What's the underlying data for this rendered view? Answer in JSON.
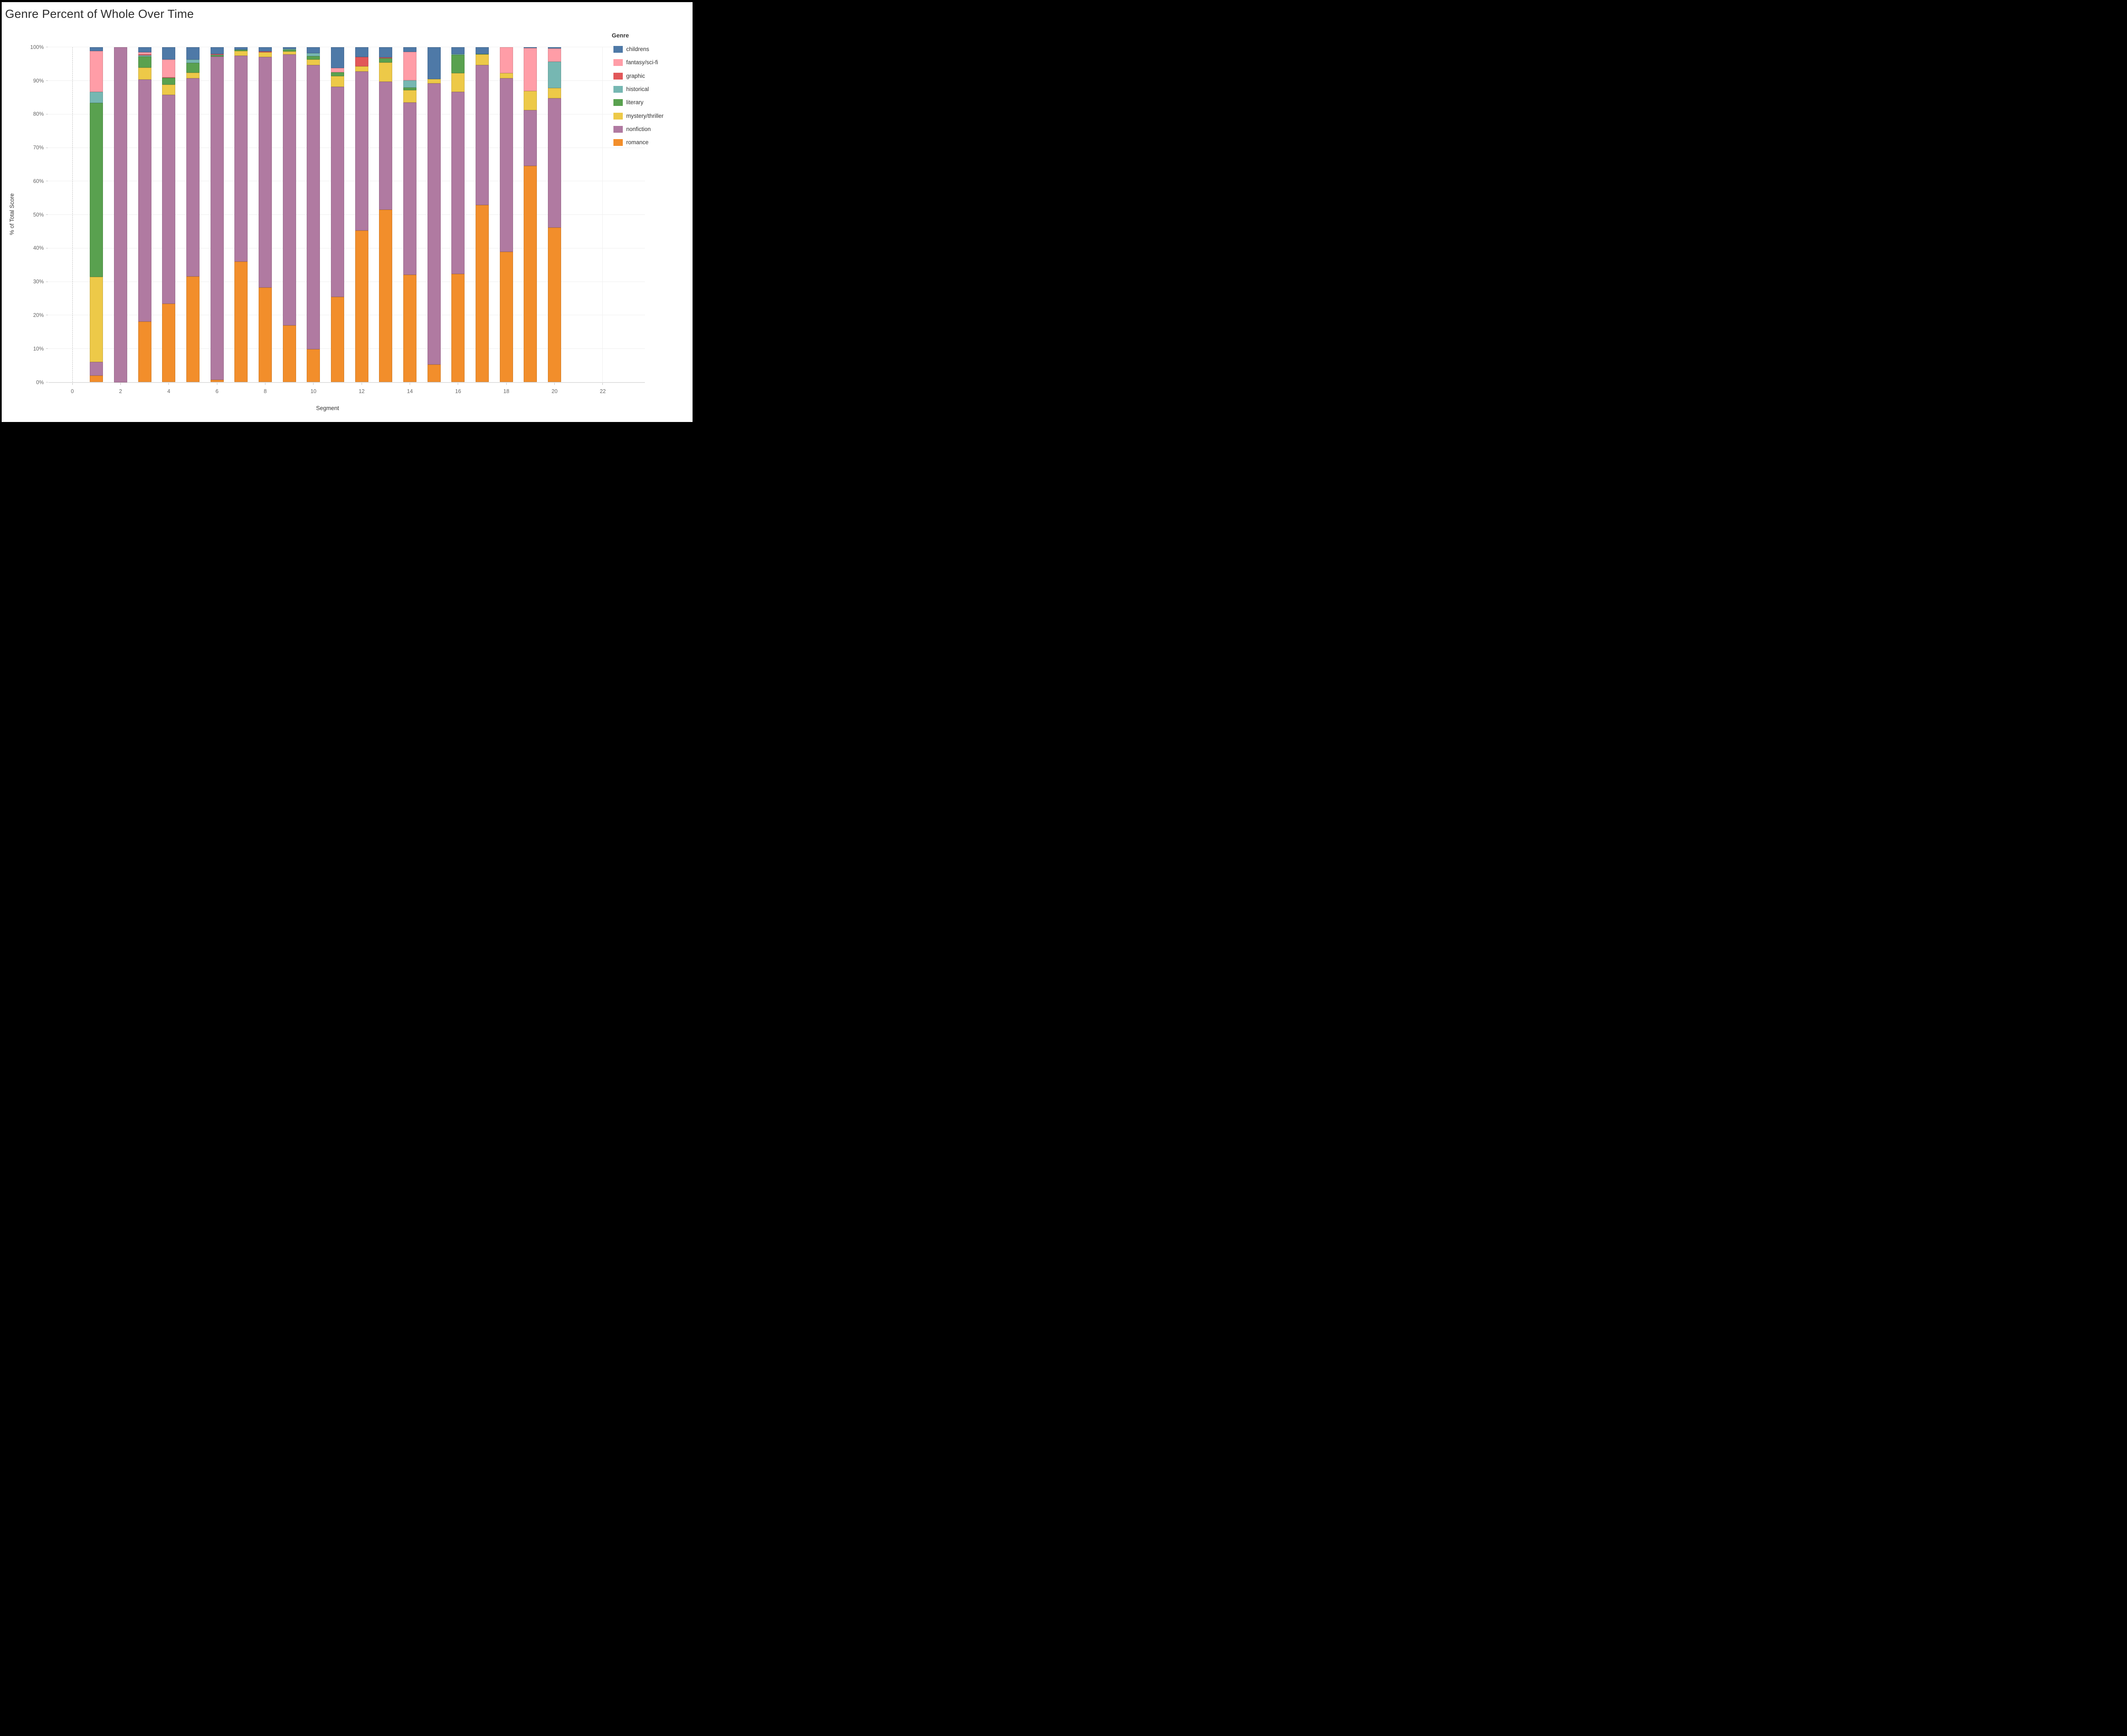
{
  "window": {
    "matte_color": "#000000",
    "sheet_color": "#ffffff"
  },
  "chart": {
    "title": "Genre Percent of Whole Over Time",
    "xlabel": "Segment",
    "ylabel": "% of Total Score"
  },
  "legend": {
    "title": "Genre",
    "items": [
      {
        "label": "childrens",
        "color": "#4e79a7"
      },
      {
        "label": "fantasy/sci-fi",
        "color": "#ff9da7"
      },
      {
        "label": "graphic",
        "color": "#e15759"
      },
      {
        "label": "historical",
        "color": "#76b7b2"
      },
      {
        "label": "literary",
        "color": "#59a14f"
      },
      {
        "label": "mystery/thriller",
        "color": "#edc948"
      },
      {
        "label": "nonfiction",
        "color": "#b07aa1"
      },
      {
        "label": "romance",
        "color": "#f28e2b"
      }
    ]
  },
  "axes": {
    "x_ticks": [
      "0",
      "2",
      "4",
      "6",
      "8",
      "10",
      "12",
      "14",
      "16",
      "18",
      "20",
      "22"
    ],
    "x_tick_values": [
      0,
      2,
      4,
      6,
      8,
      10,
      12,
      14,
      16,
      18,
      20,
      22
    ],
    "y_ticks": [
      "0%",
      "10%",
      "20%",
      "30%",
      "40%",
      "50%",
      "60%",
      "70%",
      "80%",
      "90%",
      "100%"
    ],
    "y_tick_values": [
      0,
      10,
      20,
      30,
      40,
      50,
      60,
      70,
      80,
      90,
      100
    ]
  },
  "chart_data": {
    "type": "bar",
    "subtype": "stacked-percent",
    "title": "Genre Percent of Whole Over Time",
    "xlabel": "Segment",
    "ylabel": "% of Total Score",
    "x": [
      1,
      2,
      3,
      4,
      5,
      6,
      7,
      8,
      9,
      10,
      11,
      12,
      13,
      14,
      15,
      16,
      17,
      18,
      19,
      20
    ],
    "xlim": [
      0,
      22
    ],
    "ylim": [
      0,
      100
    ],
    "grid": true,
    "legend_position": "right",
    "reference_line": {
      "axis": "x",
      "value": 0,
      "style": "dashed"
    },
    "stack_order_bottom_to_top": [
      "romance",
      "nonfiction",
      "mystery/thriller",
      "literary",
      "historical",
      "graphic",
      "fantasy/sci-fi",
      "childrens"
    ],
    "series": [
      {
        "name": "childrens",
        "color": "#4e79a7",
        "values": [
          1.2,
          0,
          1.5,
          3.7,
          3.7,
          2.0,
          0.85,
          1.25,
          0.6,
          1.75,
          6.3,
          2.95,
          3.05,
          1.4,
          9.5,
          2.1,
          2.0,
          0,
          0.3,
          0.4
        ]
      },
      {
        "name": "fantasy/sci-fi",
        "color": "#ff9da7",
        "values": [
          12.2,
          0,
          0.7,
          5.3,
          0,
          0,
          0,
          0,
          0,
          0,
          1.2,
          0,
          0,
          8.55,
          0,
          0,
          0,
          7.75,
          12.75,
          4.0
        ]
      },
      {
        "name": "graphic",
        "color": "#e15759",
        "values": [
          0,
          0,
          0.3,
          0.2,
          0,
          0.3,
          0,
          0.3,
          0,
          0,
          0,
          2.8,
          0.25,
          0,
          0,
          0,
          0,
          0,
          0,
          0
        ]
      },
      {
        "name": "historical",
        "color": "#76b7b2",
        "values": [
          3.2,
          0,
          0.3,
          0,
          1.0,
          0.2,
          0,
          0,
          0.25,
          0.9,
          0,
          0,
          0,
          2.1,
          0,
          0.2,
          0,
          0,
          0,
          7.85
        ]
      },
      {
        "name": "literary",
        "color": "#59a14f",
        "values": [
          52.0,
          0,
          3.3,
          2.0,
          3.0,
          0.3,
          0.35,
          0,
          0.45,
          1.1,
          1.2,
          0,
          1.3,
          0.8,
          0,
          5.5,
          0.2,
          0,
          0,
          0
        ]
      },
      {
        "name": "mystery/thriller",
        "color": "#edc948",
        "values": [
          25.4,
          0,
          3.6,
          3.1,
          1.6,
          0,
          1.4,
          1.35,
          0.9,
          1.65,
          3.2,
          1.55,
          5.7,
          3.65,
          1.3,
          5.5,
          3.2,
          1.55,
          5.75,
          3.0
        ]
      },
      {
        "name": "nonfiction",
        "color": "#b07aa1",
        "values": [
          4.0,
          100,
          72.2,
          62.3,
          59.2,
          96.5,
          61.4,
          68.9,
          80.8,
          84.7,
          62.6,
          47.4,
          38.2,
          51.5,
          83.9,
          54.4,
          41.7,
          51.8,
          16.7,
          38.55
        ]
      },
      {
        "name": "romance",
        "color": "#f28e2b",
        "values": [
          2.0,
          0,
          18.1,
          23.4,
          31.5,
          0.7,
          36.0,
          28.2,
          17.0,
          9.9,
          25.5,
          45.3,
          51.5,
          32.0,
          5.3,
          32.3,
          52.9,
          38.9,
          64.5,
          46.2
        ]
      }
    ]
  }
}
